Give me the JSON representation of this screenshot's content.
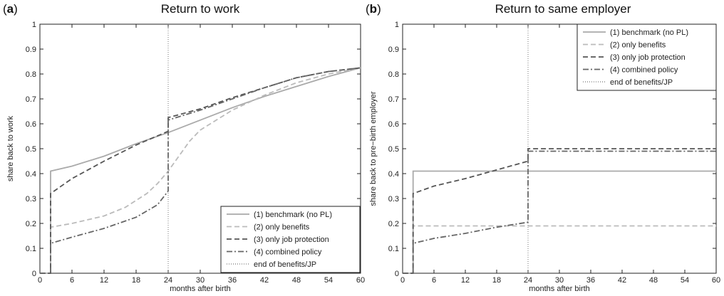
{
  "chart_data": [
    {
      "type": "line",
      "panel_label": "a",
      "title": "Return to work",
      "xlabel": "months after birth",
      "ylabel": "share back to work",
      "xlim": [
        0,
        60
      ],
      "ylim": [
        0,
        1
      ],
      "xticks": [
        0,
        6,
        12,
        18,
        24,
        30,
        36,
        42,
        48,
        54,
        60
      ],
      "yticks": [
        0,
        0.1,
        0.2,
        0.3,
        0.4,
        0.5,
        0.6,
        0.7,
        0.8,
        0.9,
        1
      ],
      "grid": false,
      "legend_position": "bottom-right",
      "vline": {
        "x": 24,
        "name": "end of benefits/JP",
        "color": "#777777",
        "dash": "dotted"
      },
      "series": [
        {
          "name": "(1) benchmark (no PL)",
          "color": "#aaaaaa",
          "dash": "solid",
          "x": [
            0,
            2,
            2,
            6,
            12,
            18,
            24,
            30,
            36,
            42,
            48,
            54,
            60
          ],
          "y": [
            0,
            0,
            0.41,
            0.43,
            0.47,
            0.52,
            0.565,
            0.615,
            0.665,
            0.71,
            0.75,
            0.79,
            0.825
          ]
        },
        {
          "name": "(2) only benefits",
          "color": "#bbbbbb",
          "dash": "dashed",
          "x": [
            0,
            2,
            2,
            6,
            12,
            16,
            20,
            22,
            24,
            26,
            28,
            30,
            36,
            42,
            48,
            54,
            60
          ],
          "y": [
            0,
            0,
            0.185,
            0.2,
            0.23,
            0.265,
            0.32,
            0.36,
            0.41,
            0.47,
            0.53,
            0.575,
            0.655,
            0.715,
            0.765,
            0.8,
            0.825
          ]
        },
        {
          "name": "(3) only job protection",
          "color": "#555555",
          "dash": "dashed",
          "x": [
            0,
            2,
            2,
            6,
            12,
            18,
            24,
            24,
            30,
            36,
            42,
            48,
            54,
            60
          ],
          "y": [
            0,
            0,
            0.32,
            0.38,
            0.45,
            0.515,
            0.57,
            0.625,
            0.66,
            0.705,
            0.745,
            0.785,
            0.81,
            0.825
          ]
        },
        {
          "name": "(4) combined policy",
          "color": "#666666",
          "dash": "dashdot",
          "x": [
            0,
            2,
            2,
            6,
            12,
            18,
            22,
            24,
            24,
            30,
            36,
            42,
            48,
            54,
            60
          ],
          "y": [
            0,
            0,
            0.12,
            0.145,
            0.18,
            0.225,
            0.275,
            0.33,
            0.615,
            0.655,
            0.7,
            0.745,
            0.785,
            0.81,
            0.825
          ]
        }
      ]
    },
    {
      "type": "line",
      "panel_label": "b",
      "title": "Return to same employer",
      "xlabel": "months after birth",
      "ylabel": "share back to pre−birth employer",
      "xlim": [
        0,
        60
      ],
      "ylim": [
        0,
        1
      ],
      "xticks": [
        0,
        6,
        12,
        18,
        24,
        30,
        36,
        42,
        48,
        54,
        60
      ],
      "yticks": [
        0,
        0.1,
        0.2,
        0.3,
        0.4,
        0.5,
        0.6,
        0.7,
        0.8,
        0.9,
        1
      ],
      "grid": false,
      "legend_position": "top-right",
      "vline": {
        "x": 24,
        "name": "end of benefits/JP",
        "color": "#777777",
        "dash": "dotted"
      },
      "series": [
        {
          "name": "(1) benchmark (no PL)",
          "color": "#aaaaaa",
          "dash": "solid",
          "x": [
            0,
            2,
            2,
            60
          ],
          "y": [
            0,
            0,
            0.41,
            0.41
          ]
        },
        {
          "name": "(2) only benefits",
          "color": "#bbbbbb",
          "dash": "dashed",
          "x": [
            0,
            2,
            2,
            60
          ],
          "y": [
            0,
            0,
            0.19,
            0.19
          ]
        },
        {
          "name": "(3) only job protection",
          "color": "#555555",
          "dash": "dashed",
          "x": [
            0,
            2,
            2,
            6,
            12,
            18,
            24,
            24,
            60
          ],
          "y": [
            0,
            0,
            0.32,
            0.35,
            0.38,
            0.415,
            0.45,
            0.5,
            0.5
          ]
        },
        {
          "name": "(4) combined policy",
          "color": "#666666",
          "dash": "dashdot",
          "x": [
            0,
            2,
            2,
            6,
            12,
            18,
            24,
            24,
            60
          ],
          "y": [
            0,
            0,
            0.12,
            0.14,
            0.16,
            0.185,
            0.205,
            0.49,
            0.49
          ]
        }
      ]
    }
  ]
}
